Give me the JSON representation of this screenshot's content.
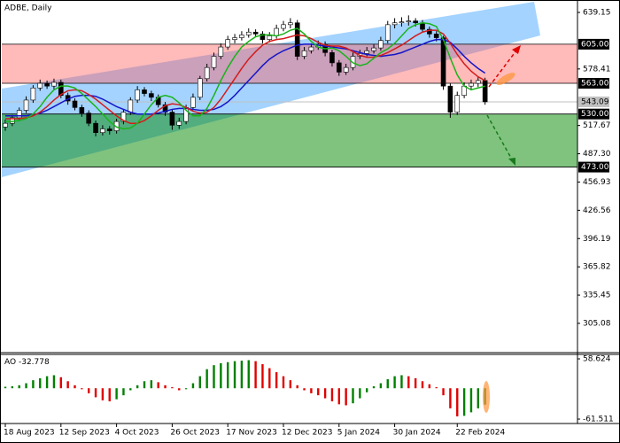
{
  "chart_data": [
    {
      "type": "candlestick",
      "title": "ADBE, Daily",
      "categories": [
        "18 Aug 2023",
        null,
        null,
        null,
        null,
        null,
        null,
        null,
        "12 Sep 2023",
        null,
        null,
        null,
        null,
        null,
        null,
        null,
        "4 Oct 2023",
        null,
        null,
        null,
        null,
        null,
        null,
        null,
        "26 Oct 2023",
        null,
        null,
        null,
        null,
        null,
        null,
        null,
        "17 Nov 2023",
        null,
        null,
        null,
        null,
        null,
        null,
        null,
        "12 Dec 2023",
        null,
        null,
        null,
        null,
        null,
        null,
        null,
        "5 Jan 2024",
        null,
        null,
        null,
        null,
        null,
        null,
        null,
        "30 Jan 2024",
        null,
        null,
        null,
        null,
        null,
        null,
        null,
        null,
        "22 Feb 2024",
        null,
        null,
        null,
        null
      ],
      "open": [
        516,
        520,
        526,
        534,
        545,
        558,
        563,
        560,
        564,
        550,
        544,
        537,
        531,
        520,
        510,
        514,
        512,
        522,
        532,
        545,
        556,
        552,
        548,
        540,
        532,
        518,
        522,
        537,
        548,
        568,
        580,
        592,
        602,
        610,
        612,
        615,
        618,
        616,
        610,
        614,
        622,
        626,
        628,
        592,
        598,
        602,
        605,
        596,
        585,
        575,
        580,
        592,
        595,
        598,
        601,
        609,
        626,
        628,
        629,
        630,
        628,
        621,
        616,
        612,
        560,
        532,
        550,
        560,
        563,
        566
      ],
      "high": [
        524,
        529,
        537,
        549,
        561,
        567,
        566,
        568,
        567,
        553,
        547,
        540,
        534,
        523,
        518,
        517,
        525,
        535,
        548,
        560,
        559,
        555,
        551,
        543,
        535,
        526,
        540,
        552,
        571,
        584,
        596,
        606,
        614,
        616,
        619,
        622,
        621,
        619,
        618,
        626,
        630,
        633,
        631,
        602,
        606,
        609,
        608,
        599,
        588,
        584,
        596,
        599,
        602,
        605,
        613,
        630,
        633,
        634,
        636,
        633,
        631,
        624,
        619,
        614,
        563,
        554,
        564,
        567,
        570,
        569
      ],
      "low": [
        512,
        517,
        523,
        531,
        542,
        555,
        557,
        556,
        547,
        540,
        534,
        527,
        517,
        506,
        507,
        508,
        509,
        519,
        529,
        542,
        549,
        544,
        537,
        528,
        513,
        514,
        519,
        534,
        545,
        565,
        577,
        589,
        599,
        606,
        609,
        612,
        613,
        606,
        607,
        611,
        619,
        622,
        588,
        589,
        595,
        599,
        592,
        581,
        571,
        572,
        577,
        589,
        592,
        595,
        598,
        606,
        622,
        624,
        625,
        624,
        618,
        612,
        608,
        556,
        526,
        529,
        547,
        556,
        559,
        540
      ],
      "close": [
        520,
        526,
        534,
        545,
        558,
        563,
        560,
        564,
        550,
        544,
        537,
        531,
        520,
        510,
        514,
        512,
        522,
        532,
        545,
        556,
        552,
        548,
        540,
        532,
        518,
        522,
        537,
        548,
        568,
        580,
        592,
        602,
        610,
        612,
        615,
        618,
        616,
        610,
        614,
        622,
        626,
        628,
        592,
        598,
        602,
        605,
        596,
        585,
        575,
        580,
        592,
        595,
        598,
        601,
        609,
        626,
        628,
        629,
        630,
        628,
        621,
        616,
        612,
        560,
        532,
        550,
        560,
        563,
        566,
        543.09
      ],
      "up_color": "#ffffff",
      "down_color": "#000000",
      "series": [
        {
          "color": "#1515c8",
          "values": [
            528,
            528,
            528,
            528,
            529,
            531,
            534,
            538,
            542,
            546,
            549,
            550,
            550,
            549,
            546,
            542,
            538,
            535,
            532,
            530,
            530,
            530,
            531,
            533,
            535,
            536,
            536,
            535,
            534,
            534,
            535,
            538,
            543,
            550,
            558,
            566,
            574,
            582,
            589,
            594,
            598,
            601,
            604,
            605,
            605,
            604,
            603,
            602,
            601,
            600,
            598,
            596,
            594,
            593,
            592,
            593,
            594,
            596,
            599,
            602,
            605,
            608,
            610,
            610,
            607,
            600,
            592,
            585,
            579,
            574
          ]
        },
        {
          "color": "#d41c1c",
          "values": [
            525,
            525,
            525,
            526,
            528,
            532,
            538,
            545,
            551,
            555,
            556,
            555,
            551,
            546,
            540,
            534,
            528,
            523,
            520,
            520,
            523,
            528,
            534,
            539,
            541,
            540,
            537,
            533,
            531,
            532,
            537,
            546,
            557,
            568,
            579,
            589,
            597,
            604,
            608,
            610,
            611,
            613,
            615,
            614,
            611,
            607,
            604,
            603,
            603,
            601,
            597,
            593,
            591,
            591,
            593,
            596,
            600,
            604,
            609,
            614,
            618,
            620,
            620,
            616,
            606,
            594,
            584,
            576,
            570,
            566
          ]
        },
        {
          "color": "#19b419",
          "values": [
            522,
            522,
            523,
            525,
            530,
            538,
            548,
            556,
            560,
            560,
            558,
            552,
            545,
            538,
            530,
            522,
            516,
            514,
            515,
            520,
            530,
            540,
            548,
            550,
            548,
            542,
            534,
            528,
            528,
            536,
            550,
            566,
            580,
            592,
            602,
            608,
            613,
            615,
            615,
            614,
            616,
            620,
            622,
            616,
            608,
            602,
            600,
            601,
            598,
            592,
            585,
            582,
            584,
            590,
            596,
            600,
            606,
            614,
            622,
            626,
            628,
            627,
            624,
            610,
            590,
            572,
            560,
            556,
            558,
            560
          ]
        }
      ],
      "levels": [
        {
          "value": 605,
          "label": "605.00"
        },
        {
          "value": 563,
          "label": "563.00"
        },
        {
          "value": 530,
          "label": "530.00"
        },
        {
          "value": 473,
          "label": "473.00"
        }
      ],
      "zone_colors": [
        "rgba(255,90,90,0.42)",
        "rgba(0,135,0,0.5)"
      ],
      "current_price": 543.09,
      "ylim": [
        274.6,
        650.6
      ],
      "yticks": [
        639.15,
        578.41,
        517.67,
        {
          "value": 487.3,
          "label": "487.30"
        },
        456.93,
        426.56,
        396.19,
        365.82,
        335.45,
        305.08
      ],
      "grid": false
    },
    {
      "type": "bar",
      "title": "AO",
      "values": [
        3,
        4,
        6,
        10,
        16,
        20,
        24,
        26,
        22,
        14,
        6,
        -2,
        -10,
        -18,
        -24,
        -26,
        -22,
        -14,
        -4,
        6,
        14,
        16,
        12,
        6,
        2,
        -4,
        -2,
        10,
        24,
        38,
        46,
        50,
        52,
        54,
        55,
        56,
        54,
        48,
        40,
        32,
        24,
        16,
        6,
        -4,
        -10,
        -14,
        -20,
        -26,
        -32,
        -34,
        -30,
        -20,
        -8,
        4,
        10,
        18,
        24,
        26,
        24,
        20,
        14,
        8,
        2,
        -14,
        -40,
        -56,
        -55,
        -48,
        -40,
        -32.778
      ],
      "up_color": "#008000",
      "down_color": "#e00000",
      "ylim": [
        -70.3,
        67.5
      ],
      "yticks": [
        58.624,
        -61.511
      ]
    }
  ]
}
